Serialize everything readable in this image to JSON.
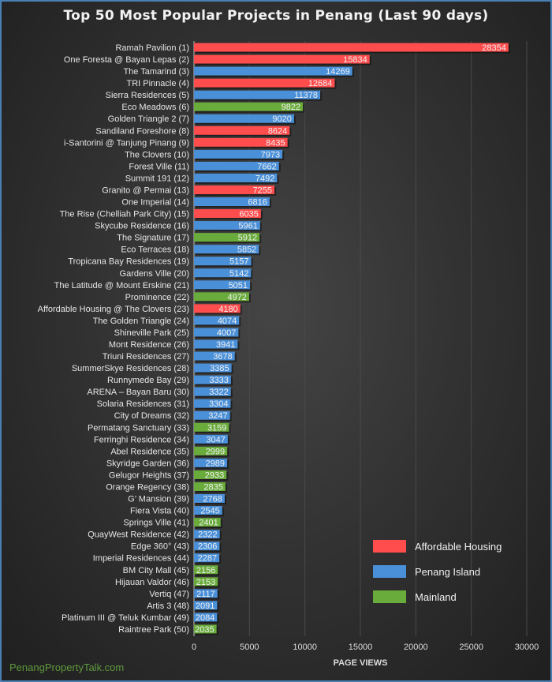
{
  "chart_data": {
    "type": "bar",
    "orientation": "horizontal",
    "title": "Top 50 Most Popular Projects in Penang (Last 90 days)",
    "xlabel": "PAGE VIEWS",
    "ylabel": "",
    "xlim": [
      0,
      30000
    ],
    "xticks": [
      "0",
      "5000",
      "10000",
      "15000",
      "20000",
      "25000",
      "30000"
    ],
    "grid": "vertical",
    "legend_placement": "bottom-right",
    "legend": [
      {
        "name": "Affordable Housing",
        "color": "#ff4d4d"
      },
      {
        "name": "Penang Island",
        "color": "#4a90d9"
      },
      {
        "name": "Mainland",
        "color": "#6aac3c"
      }
    ],
    "bars": [
      {
        "label": "Ramah Pavilion (1)",
        "value": 28354,
        "group": "Affordable Housing"
      },
      {
        "label": "One Foresta @ Bayan Lepas (2)",
        "value": 15834,
        "group": "Affordable Housing"
      },
      {
        "label": "The Tamarind (3)",
        "value": 14269,
        "group": "Penang Island"
      },
      {
        "label": "TRI Pinnacle (4)",
        "value": 12684,
        "group": "Affordable Housing"
      },
      {
        "label": "Sierra Residences (5)",
        "value": 11378,
        "group": "Penang Island"
      },
      {
        "label": "Eco Meadows (6)",
        "value": 9822,
        "group": "Mainland"
      },
      {
        "label": "Golden Triangle 2 (7)",
        "value": 9020,
        "group": "Penang Island"
      },
      {
        "label": "Sandiland Foreshore (8)",
        "value": 8624,
        "group": "Affordable Housing"
      },
      {
        "label": "i-Santorini @ Tanjung Pinang (9)",
        "value": 8435,
        "group": "Affordable Housing"
      },
      {
        "label": "The Clovers (10)",
        "value": 7973,
        "group": "Penang Island"
      },
      {
        "label": "Forest Ville (11)",
        "value": 7662,
        "group": "Penang Island"
      },
      {
        "label": "Summit 191 (12)",
        "value": 7492,
        "group": "Penang Island"
      },
      {
        "label": "Granito @ Permai (13)",
        "value": 7255,
        "group": "Affordable Housing"
      },
      {
        "label": "One Imperial (14)",
        "value": 6816,
        "group": "Penang Island"
      },
      {
        "label": "The Rise (Chelliah Park City) (15)",
        "value": 6035,
        "group": "Affordable Housing"
      },
      {
        "label": "Skycube Residence (16)",
        "value": 5961,
        "group": "Penang Island"
      },
      {
        "label": "The Signature (17)",
        "value": 5912,
        "group": "Mainland"
      },
      {
        "label": "Eco Terraces (18)",
        "value": 5852,
        "group": "Penang Island"
      },
      {
        "label": "Tropicana Bay Residences (19)",
        "value": 5157,
        "group": "Penang Island"
      },
      {
        "label": "Gardens Ville (20)",
        "value": 5142,
        "group": "Penang Island"
      },
      {
        "label": "The Latitude @ Mount Erskine (21)",
        "value": 5051,
        "group": "Penang Island"
      },
      {
        "label": "Prominence (22)",
        "value": 4972,
        "group": "Mainland"
      },
      {
        "label": "Affordable Housing @ The Clovers (23)",
        "value": 4180,
        "group": "Affordable Housing"
      },
      {
        "label": "The Golden Triangle (24)",
        "value": 4074,
        "group": "Penang Island"
      },
      {
        "label": "Shineville Park (25)",
        "value": 4007,
        "group": "Penang Island"
      },
      {
        "label": "Mont Residence (26)",
        "value": 3941,
        "group": "Penang Island"
      },
      {
        "label": "Triuni Residences (27)",
        "value": 3678,
        "group": "Penang Island"
      },
      {
        "label": "SummerSkye Residences (28)",
        "value": 3385,
        "group": "Penang Island"
      },
      {
        "label": "Runnymede Bay (29)",
        "value": 3333,
        "group": "Penang Island"
      },
      {
        "label": "ARENA – Bayan Baru (30)",
        "value": 3322,
        "group": "Penang Island"
      },
      {
        "label": "Solaria Residences (31)",
        "value": 3304,
        "group": "Penang Island"
      },
      {
        "label": "City of Dreams (32)",
        "value": 3247,
        "group": "Penang Island"
      },
      {
        "label": "Permatang Sanctuary (33)",
        "value": 3159,
        "group": "Mainland"
      },
      {
        "label": "Ferringhi Residence (34)",
        "value": 3047,
        "group": "Penang Island"
      },
      {
        "label": "Abel Residence (35)",
        "value": 2999,
        "group": "Mainland"
      },
      {
        "label": "Skyridge Garden (36)",
        "value": 2989,
        "group": "Penang Island"
      },
      {
        "label": "Gelugor Heights (37)",
        "value": 2933,
        "group": "Mainland"
      },
      {
        "label": "Orange Regency (38)",
        "value": 2835,
        "group": "Mainland"
      },
      {
        "label": "G’ Mansion (39)",
        "value": 2768,
        "group": "Penang Island"
      },
      {
        "label": "Fiera Vista (40)",
        "value": 2545,
        "group": "Penang Island"
      },
      {
        "label": "Springs Ville (41)",
        "value": 2401,
        "group": "Mainland"
      },
      {
        "label": "QuayWest Residence (42)",
        "value": 2322,
        "group": "Penang Island"
      },
      {
        "label": "Edge 360° (43)",
        "value": 2306,
        "group": "Penang Island"
      },
      {
        "label": "Imperial Residences (44)",
        "value": 2287,
        "group": "Penang Island"
      },
      {
        "label": "BM City Mall (45)",
        "value": 2156,
        "group": "Mainland"
      },
      {
        "label": "Hijauan Valdor (46)",
        "value": 2153,
        "group": "Mainland"
      },
      {
        "label": "Vertiq (47)",
        "value": 2117,
        "group": "Penang Island"
      },
      {
        "label": "Artis 3 (48)",
        "value": 2091,
        "group": "Penang Island"
      },
      {
        "label": "Platinum III @ Teluk Kumbar (49)",
        "value": 2084,
        "group": "Penang Island"
      },
      {
        "label": "Raintree Park (50)",
        "value": 2035,
        "group": "Mainland"
      }
    ]
  },
  "watermark": "PenangPropertyTalk.com"
}
